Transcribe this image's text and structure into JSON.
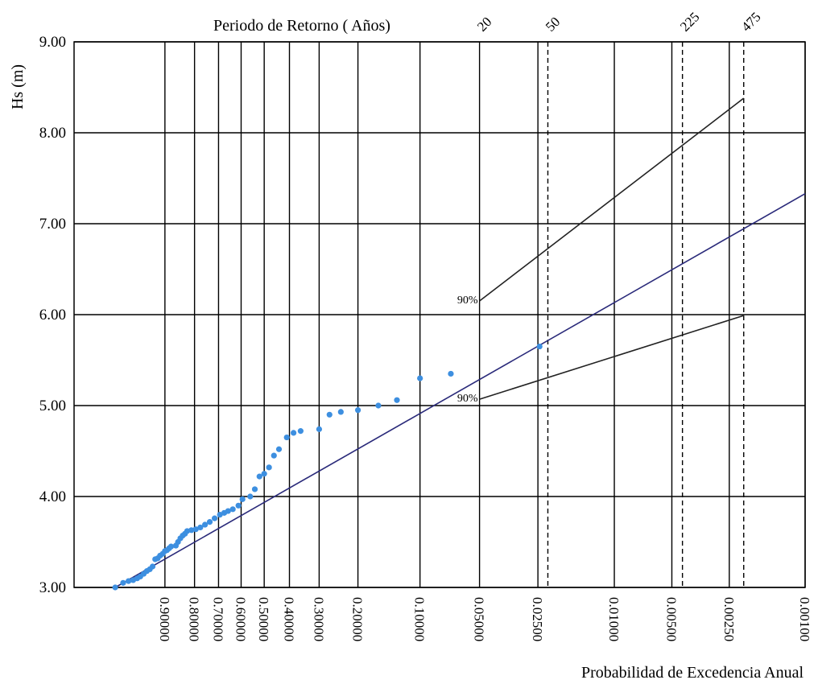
{
  "chart_data": {
    "type": "scatter",
    "title": "Periodo de Retorno ( Años)",
    "ylabel": "Hs   (m)",
    "xlabel": "Probabilidad de Excedencia Anual",
    "ylim": [
      3.0,
      9.0
    ],
    "y_ticks": [
      "3.00",
      "4.00",
      "5.00",
      "6.00",
      "7.00",
      "8.00",
      "9.00"
    ],
    "y_values": [
      3,
      4,
      5,
      6,
      7,
      8,
      9
    ],
    "x_scale": "extreme-value probability",
    "x_range": [
      0.999,
      0.001
    ],
    "x_ticks": [
      {
        "p": 0.9,
        "label": "0.90000"
      },
      {
        "p": 0.8,
        "label": "0.80000"
      },
      {
        "p": 0.7,
        "label": "0.70000"
      },
      {
        "p": 0.6,
        "label": "0.60000"
      },
      {
        "p": 0.5,
        "label": "0.50000"
      },
      {
        "p": 0.4,
        "label": "0.40000"
      },
      {
        "p": 0.3,
        "label": "0.30000"
      },
      {
        "p": 0.2,
        "label": "0.20000"
      },
      {
        "p": 0.1,
        "label": "0.10000"
      },
      {
        "p": 0.05,
        "label": "0.05000"
      },
      {
        "p": 0.025,
        "label": "0.02500"
      },
      {
        "p": 0.01,
        "label": "0.01000"
      },
      {
        "p": 0.005,
        "label": "0.00500"
      },
      {
        "p": 0.0025,
        "label": "0.00250"
      },
      {
        "p": 0.001,
        "label": "0.00100"
      }
    ],
    "return_periods": [
      {
        "p": 0.05,
        "label": "20"
      },
      {
        "p": 0.0222,
        "label": "50"
      },
      {
        "p": 0.0044,
        "label": "225"
      },
      {
        "p": 0.0021,
        "label": "475"
      }
    ],
    "observed": {
      "color": "#3d8fe0",
      "points": [
        [
          0.985,
          3.0
        ],
        [
          0.978,
          3.05
        ],
        [
          0.972,
          3.07
        ],
        [
          0.966,
          3.08
        ],
        [
          0.96,
          3.1
        ],
        [
          0.955,
          3.12
        ],
        [
          0.949,
          3.15
        ],
        [
          0.943,
          3.18
        ],
        [
          0.937,
          3.2
        ],
        [
          0.931,
          3.23
        ],
        [
          0.925,
          3.31
        ],
        [
          0.919,
          3.32
        ],
        [
          0.913,
          3.35
        ],
        [
          0.906,
          3.37
        ],
        [
          0.9,
          3.4
        ],
        [
          0.894,
          3.41
        ],
        [
          0.888,
          3.43
        ],
        [
          0.882,
          3.45
        ],
        [
          0.867,
          3.46
        ],
        [
          0.86,
          3.5
        ],
        [
          0.852,
          3.54
        ],
        [
          0.844,
          3.57
        ],
        [
          0.836,
          3.59
        ],
        [
          0.828,
          3.62
        ],
        [
          0.812,
          3.63
        ],
        [
          0.795,
          3.64
        ],
        [
          0.777,
          3.66
        ],
        [
          0.758,
          3.69
        ],
        [
          0.738,
          3.72
        ],
        [
          0.717,
          3.76
        ],
        [
          0.694,
          3.8
        ],
        [
          0.675,
          3.82
        ],
        [
          0.658,
          3.84
        ],
        [
          0.637,
          3.86
        ],
        [
          0.612,
          3.9
        ],
        [
          0.594,
          3.97
        ],
        [
          0.56,
          4.0
        ],
        [
          0.54,
          4.08
        ],
        [
          0.52,
          4.22
        ],
        [
          0.5,
          4.25
        ],
        [
          0.48,
          4.32
        ],
        [
          0.46,
          4.45
        ],
        [
          0.44,
          4.52
        ],
        [
          0.41,
          4.65
        ],
        [
          0.385,
          4.7
        ],
        [
          0.36,
          4.72
        ],
        [
          0.3,
          4.74
        ],
        [
          0.27,
          4.9
        ],
        [
          0.24,
          4.93
        ],
        [
          0.2,
          4.95
        ],
        [
          0.16,
          5.0
        ],
        [
          0.13,
          5.06
        ],
        [
          0.1,
          5.3
        ],
        [
          0.07,
          5.35
        ],
        [
          0.0245,
          5.65
        ]
      ]
    },
    "fit_line": {
      "color": "#2a2a7a",
      "points": [
        [
          0.985,
          3.0
        ],
        [
          0.001,
          7.33
        ]
      ]
    },
    "confidence_bands": {
      "label": "90%",
      "color": "#222222",
      "upper": [
        [
          0.05,
          6.15
        ],
        [
          0.0021,
          8.38
        ]
      ],
      "lower": [
        [
          0.05,
          5.07
        ],
        [
          0.0021,
          5.99
        ]
      ]
    },
    "grid": true
  }
}
